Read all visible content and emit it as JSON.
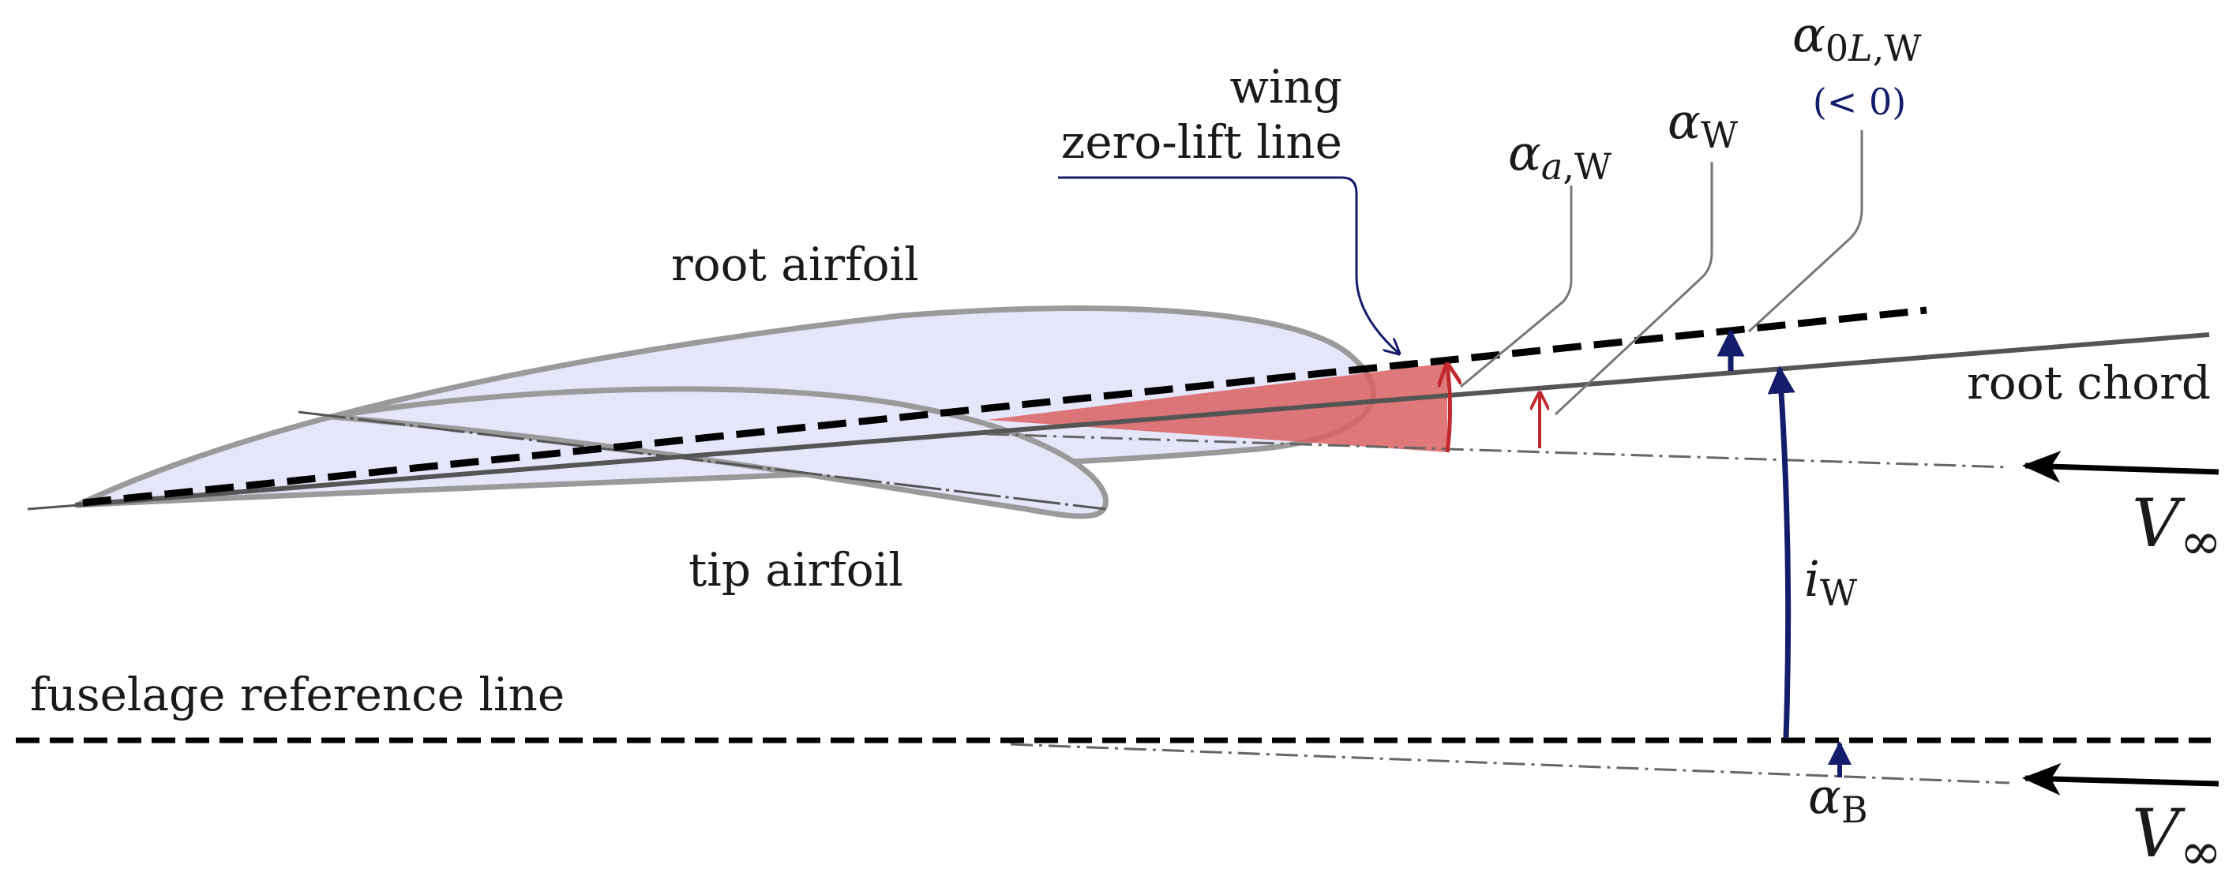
{
  "labels": {
    "wing_zero_lift_line_1": "wing",
    "wing_zero_lift_line_2": "zero-lift line",
    "root_airfoil": "root airfoil",
    "tip_airfoil": "tip airfoil",
    "root_chord": "root chord",
    "fuselage_reference_line": "fuselage reference line",
    "alpha_a_w": {
      "symbol": "α",
      "sub_italic": "a",
      "sub": ",W"
    },
    "alpha_w": {
      "symbol": "α",
      "sub": "W"
    },
    "alpha_0l_w": {
      "symbol": "α",
      "sub_num": "0",
      "sub_italic": "L",
      "sub": ",W",
      "note": "(< 0)"
    },
    "i_w": {
      "symbol": "i",
      "sub": "W"
    },
    "alpha_b": {
      "symbol": "α",
      "sub": "B"
    },
    "v_inf_upper": {
      "symbol": "V",
      "sub": "∞"
    },
    "v_inf_lower": {
      "symbol": "V",
      "sub": "∞"
    }
  },
  "colors": {
    "airfoil_fill": "#e6e6fa",
    "airfoil_stroke": "#9a9a9a",
    "angle_fill": "#d96060",
    "red_arrow": "#c0282d",
    "navy": "#141d6b",
    "line_dark": "#555555",
    "black": "#000000"
  }
}
